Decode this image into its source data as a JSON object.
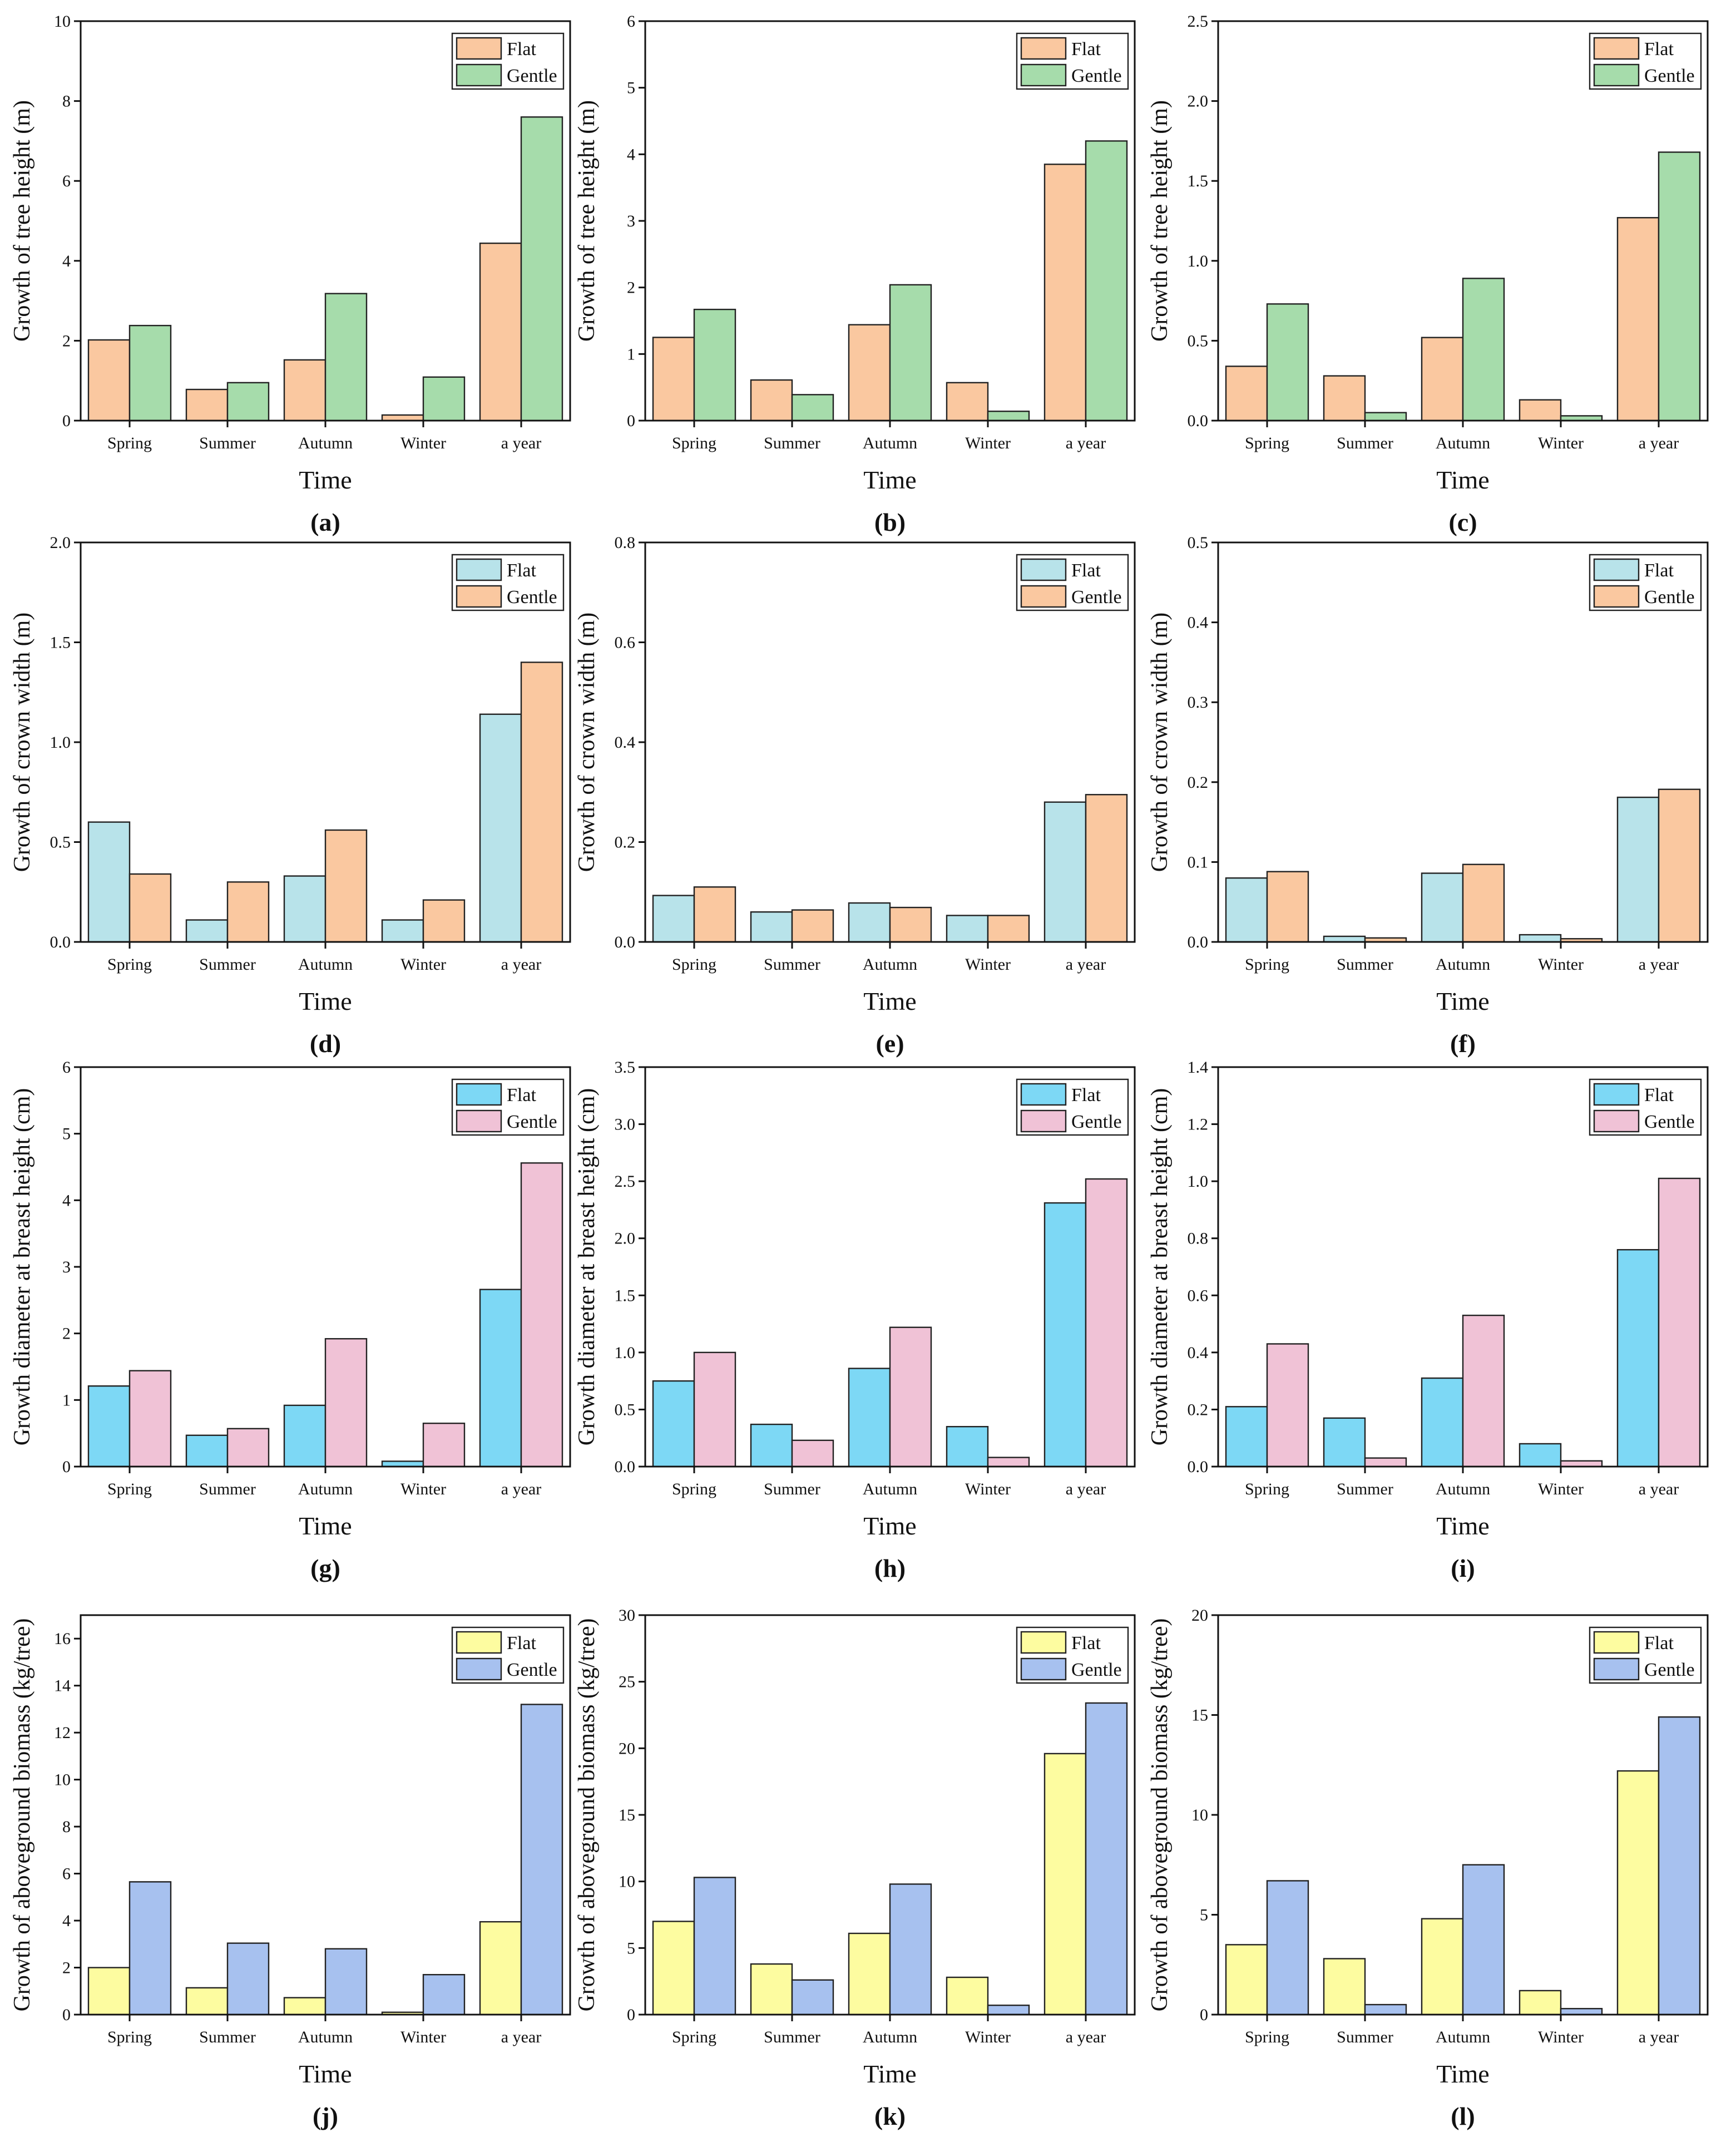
{
  "figure": {
    "x_axis_title": "Time",
    "series_names": [
      "Flat",
      "Gentle"
    ]
  },
  "chart_data": [
    {
      "type": "bar",
      "panel_label": "(a)",
      "title": "",
      "xlabel": "Time",
      "ylabel": "Growth of tree height (m)",
      "categories": [
        "Spring",
        "Summer",
        "Autumn",
        "Winter",
        "a year"
      ],
      "ylim": [
        0,
        10
      ],
      "yticks": [
        "0",
        "2",
        "4",
        "6",
        "8",
        "10"
      ],
      "legend": "top-right",
      "series": [
        {
          "name": "Flat",
          "color": "#fac8a0",
          "values": [
            2.02,
            0.78,
            1.52,
            0.14,
            4.44
          ]
        },
        {
          "name": "Gentle",
          "color": "#a6dcab",
          "values": [
            2.38,
            0.95,
            3.18,
            1.09,
            7.6
          ]
        }
      ]
    },
    {
      "type": "bar",
      "panel_label": "(b)",
      "title": "",
      "xlabel": "Time",
      "ylabel": "Growth of tree height (m)",
      "categories": [
        "Spring",
        "Summer",
        "Autumn",
        "Winter",
        "a year"
      ],
      "ylim": [
        0,
        6
      ],
      "yticks": [
        "0",
        "1",
        "2",
        "3",
        "4",
        "5",
        "6"
      ],
      "legend": "top-right",
      "series": [
        {
          "name": "Flat",
          "color": "#fac8a0",
          "values": [
            1.25,
            0.61,
            1.44,
            0.57,
            3.85
          ]
        },
        {
          "name": "Gentle",
          "color": "#a6dcab",
          "values": [
            1.67,
            0.39,
            2.04,
            0.14,
            4.2
          ]
        }
      ]
    },
    {
      "type": "bar",
      "panel_label": "(c)",
      "title": "",
      "xlabel": "Time",
      "ylabel": "Growth of tree height (m)",
      "categories": [
        "Spring",
        "Summer",
        "Autumn",
        "Winter",
        "a year"
      ],
      "ylim": [
        0,
        2.5
      ],
      "yticks": [
        "0.0",
        "0.5",
        "1.0",
        "1.5",
        "2.0",
        "2.5"
      ],
      "legend": "top-right",
      "series": [
        {
          "name": "Flat",
          "color": "#fac8a0",
          "values": [
            0.34,
            0.28,
            0.52,
            0.13,
            1.27
          ]
        },
        {
          "name": "Gentle",
          "color": "#a6dcab",
          "values": [
            0.73,
            0.05,
            0.89,
            0.03,
            1.68
          ]
        }
      ]
    },
    {
      "type": "bar",
      "panel_label": "(d)",
      "title": "",
      "xlabel": "Time",
      "ylabel": "Growth of crown width (m)",
      "categories": [
        "Spring",
        "Summer",
        "Autumn",
        "Winter",
        "a year"
      ],
      "ylim": [
        0,
        2.0
      ],
      "yticks": [
        "0.0",
        "0.5",
        "1.0",
        "1.5",
        "2.0"
      ],
      "legend": "top-right",
      "series": [
        {
          "name": "Flat",
          "color": "#b8e3ea",
          "values": [
            0.6,
            0.11,
            0.33,
            0.11,
            1.14
          ]
        },
        {
          "name": "Gentle",
          "color": "#fac8a0",
          "values": [
            0.34,
            0.3,
            0.56,
            0.21,
            1.4
          ]
        }
      ]
    },
    {
      "type": "bar",
      "panel_label": "(e)",
      "title": "",
      "xlabel": "Time",
      "ylabel": "Growth of crown width (m)",
      "categories": [
        "Spring",
        "Summer",
        "Autumn",
        "Winter",
        "a year"
      ],
      "ylim": [
        0,
        0.8
      ],
      "yticks": [
        "0.0",
        "0.2",
        "0.4",
        "0.6",
        "0.8"
      ],
      "legend": "top-right",
      "series": [
        {
          "name": "Flat",
          "color": "#b8e3ea",
          "values": [
            0.093,
            0.06,
            0.078,
            0.053,
            0.28
          ]
        },
        {
          "name": "Gentle",
          "color": "#fac8a0",
          "values": [
            0.11,
            0.064,
            0.069,
            0.053,
            0.295
          ]
        }
      ]
    },
    {
      "type": "bar",
      "panel_label": "(f)",
      "title": "",
      "xlabel": "Time",
      "ylabel": "Growth of crown width (m)",
      "categories": [
        "Spring",
        "Summer",
        "Autumn",
        "Winter",
        "a year"
      ],
      "ylim": [
        0,
        0.5
      ],
      "yticks": [
        "0.0",
        "0.1",
        "0.2",
        "0.3",
        "0.4",
        "0.5"
      ],
      "legend": "top-right",
      "series": [
        {
          "name": "Flat",
          "color": "#b8e3ea",
          "values": [
            0.08,
            0.007,
            0.086,
            0.009,
            0.181
          ]
        },
        {
          "name": "Gentle",
          "color": "#fac8a0",
          "values": [
            0.088,
            0.005,
            0.097,
            0.004,
            0.191
          ]
        }
      ]
    },
    {
      "type": "bar",
      "panel_label": "(g)",
      "title": "",
      "xlabel": "Time",
      "ylabel": "Growth diameter at breast height (cm)",
      "categories": [
        "Spring",
        "Summer",
        "Autumn",
        "Winter",
        "a year"
      ],
      "ylim": [
        0,
        6
      ],
      "yticks": [
        "0",
        "1",
        "2",
        "3",
        "4",
        "5",
        "6"
      ],
      "legend": "top-right",
      "series": [
        {
          "name": "Flat",
          "color": "#7dd8f5",
          "values": [
            1.21,
            0.47,
            0.92,
            0.08,
            2.66
          ]
        },
        {
          "name": "Gentle",
          "color": "#f0c2d6",
          "values": [
            1.44,
            0.57,
            1.92,
            0.65,
            4.56
          ]
        }
      ]
    },
    {
      "type": "bar",
      "panel_label": "(h)",
      "title": "",
      "xlabel": "Time",
      "ylabel": "Growth diameter at breast height (cm)",
      "categories": [
        "Spring",
        "Summer",
        "Autumn",
        "Winter",
        "a year"
      ],
      "ylim": [
        0,
        3.5
      ],
      "yticks": [
        "0.0",
        "0.5",
        "1.0",
        "1.5",
        "2.0",
        "2.5",
        "3.0",
        "3.5"
      ],
      "legend": "top-right",
      "series": [
        {
          "name": "Flat",
          "color": "#7dd8f5",
          "values": [
            0.75,
            0.37,
            0.86,
            0.35,
            2.31
          ]
        },
        {
          "name": "Gentle",
          "color": "#f0c2d6",
          "values": [
            1.0,
            0.23,
            1.22,
            0.08,
            2.52
          ]
        }
      ]
    },
    {
      "type": "bar",
      "panel_label": "(i)",
      "title": "",
      "xlabel": "Time",
      "ylabel": "Growth diameter at breast height (cm)",
      "categories": [
        "Spring",
        "Summer",
        "Autumn",
        "Winter",
        "a year"
      ],
      "ylim": [
        0,
        1.4
      ],
      "yticks": [
        "0.0",
        "0.2",
        "0.4",
        "0.6",
        "0.8",
        "1.0",
        "1.2",
        "1.4"
      ],
      "legend": "top-right",
      "series": [
        {
          "name": "Flat",
          "color": "#7dd8f5",
          "values": [
            0.21,
            0.17,
            0.31,
            0.08,
            0.76
          ]
        },
        {
          "name": "Gentle",
          "color": "#f0c2d6",
          "values": [
            0.43,
            0.03,
            0.53,
            0.02,
            1.01
          ]
        }
      ]
    },
    {
      "type": "bar",
      "panel_label": "(j)",
      "title": "",
      "xlabel": "Time",
      "ylabel": "Growth of aboveground biomass (kg/tree)",
      "categories": [
        "Spring",
        "Summer",
        "Autumn",
        "Winter",
        "a year"
      ],
      "ylim": [
        0,
        17
      ],
      "yticks": [
        "0",
        "2",
        "4",
        "6",
        "8",
        "10",
        "12",
        "14",
        "16"
      ],
      "legend": "top-right",
      "series": [
        {
          "name": "Flat",
          "color": "#fdfca0",
          "values": [
            2.0,
            1.14,
            0.72,
            0.1,
            3.95
          ]
        },
        {
          "name": "Gentle",
          "color": "#a7c1ef",
          "values": [
            5.65,
            3.04,
            2.8,
            1.7,
            13.2
          ]
        }
      ]
    },
    {
      "type": "bar",
      "panel_label": "(k)",
      "title": "",
      "xlabel": "Time",
      "ylabel": "Growth of aboveground biomass (kg/tree)",
      "categories": [
        "Spring",
        "Summer",
        "Autumn",
        "Winter",
        "a year"
      ],
      "ylim": [
        0,
        30
      ],
      "yticks": [
        "0",
        "5",
        "10",
        "15",
        "20",
        "25",
        "30"
      ],
      "legend": "top-right",
      "series": [
        {
          "name": "Flat",
          "color": "#fdfca0",
          "values": [
            7.0,
            3.8,
            6.1,
            2.8,
            19.6
          ]
        },
        {
          "name": "Gentle",
          "color": "#a7c1ef",
          "values": [
            10.3,
            2.6,
            9.8,
            0.7,
            23.4
          ]
        }
      ]
    },
    {
      "type": "bar",
      "panel_label": "(l)",
      "title": "",
      "xlabel": "Time",
      "ylabel": "Growth of aboveground biomass (kg/tree)",
      "categories": [
        "Spring",
        "Summer",
        "Autumn",
        "Winter",
        "a year"
      ],
      "ylim": [
        0,
        20
      ],
      "yticks": [
        "0",
        "5",
        "10",
        "15",
        "20"
      ],
      "legend": "top-right",
      "series": [
        {
          "name": "Flat",
          "color": "#fdfca0",
          "values": [
            3.5,
            2.8,
            4.8,
            1.2,
            12.2
          ]
        },
        {
          "name": "Gentle",
          "color": "#a7c1ef",
          "values": [
            6.7,
            0.5,
            7.5,
            0.3,
            14.9
          ]
        }
      ]
    }
  ]
}
